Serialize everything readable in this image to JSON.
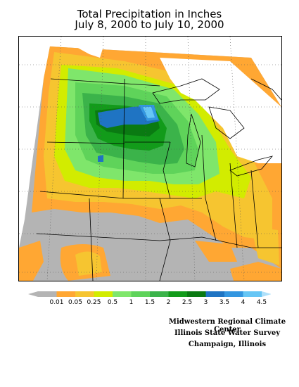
{
  "title": {
    "line1": "Total Precipitation in Inches",
    "line2": "July 8, 2000 to July 10, 2000"
  },
  "legend": {
    "ticks": [
      "0.01",
      "0.05",
      "0.25",
      "0.5",
      "1",
      "1.5",
      "2",
      "2.5",
      "3",
      "3.5",
      "4",
      "4.5"
    ],
    "colors": [
      "#b4b4b4",
      "#ffa733",
      "#f6c530",
      "#d2ec00",
      "#7fe66b",
      "#5fd35a",
      "#3bb34a",
      "#129b1a",
      "#0a7a12",
      "#1f74c3",
      "#3396e0",
      "#66c6f5"
    ]
  },
  "credits": {
    "line1": "Midwestern Regional Climate Center",
    "line2": "Illinois State Water Survey",
    "line3": "Champaign, Illinois"
  }
}
